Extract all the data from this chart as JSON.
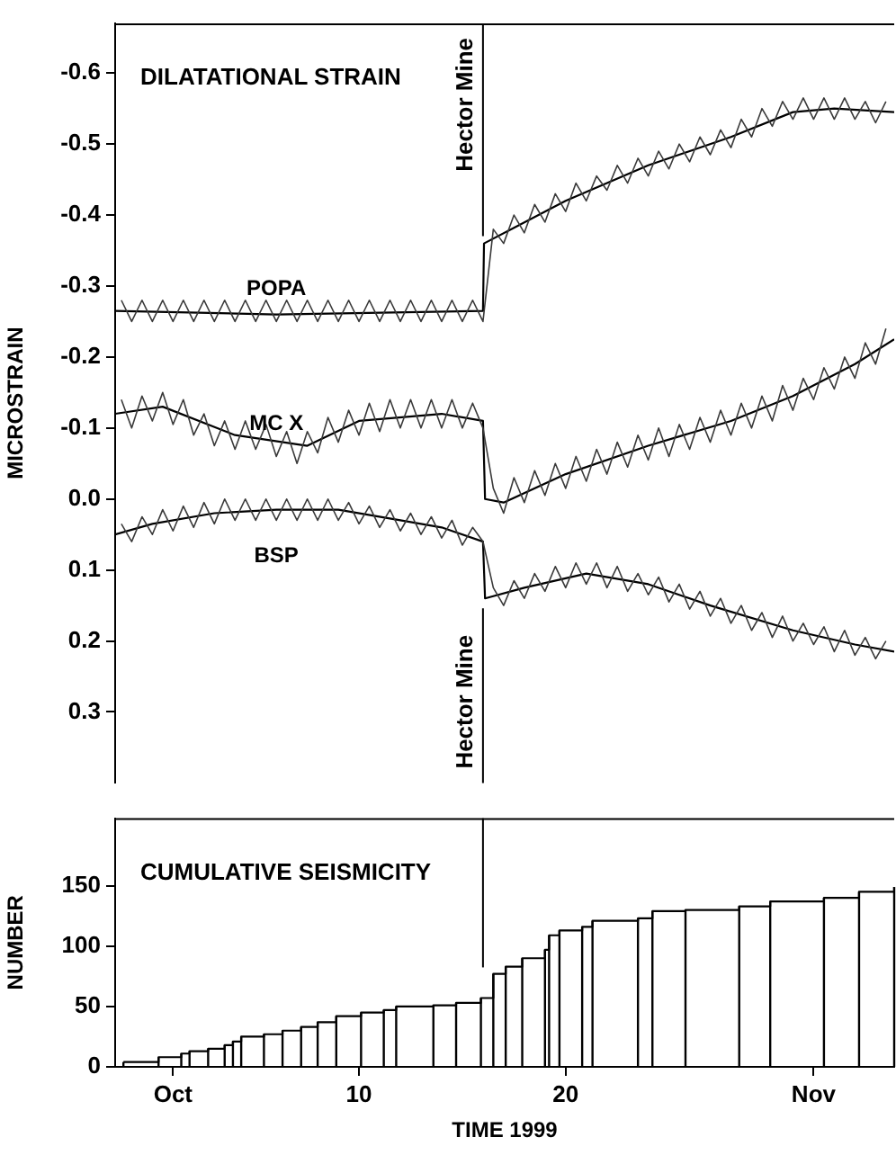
{
  "chart_data": [
    {
      "type": "line",
      "title": "DILATATIONAL STRAIN",
      "ylabel": "MICROSTRAIN",
      "x": [
        -1.5,
        -1,
        -0.5,
        0,
        0.5,
        1,
        1.5,
        2,
        2.5,
        3,
        3.5,
        4,
        4.5,
        5,
        5.5,
        6,
        6.5,
        7,
        7.5,
        8,
        8.5,
        9,
        9.5,
        10,
        10.5,
        11,
        11.5,
        12,
        12.5,
        13,
        13.5,
        14,
        14.5,
        15,
        15.5,
        16,
        16.5,
        17,
        17.5,
        18,
        18.5,
        19,
        19.5,
        20,
        20.5,
        21,
        21.5,
        22,
        22.5,
        23,
        23.5,
        24,
        24.5,
        25,
        25.5,
        26,
        26.5,
        27,
        27.5,
        28,
        28.5,
        29,
        29.5,
        30,
        30.5,
        31,
        31.5,
        32,
        32.5,
        33,
        33.5,
        34,
        34.5,
        35,
        35.5
      ],
      "xlim": [
        -1.8,
        35.9
      ],
      "ylim": [
        0.4,
        -0.67
      ],
      "yticks": [
        -0.6,
        -0.5,
        -0.4,
        -0.3,
        -0.2,
        -0.1,
        {
          "value": 0,
          "label": "0.0"
        },
        0.1,
        0.2,
        0.3
      ],
      "tick_labels": "y",
      "grid": false,
      "ref_lines": [
        {
          "axis": "x",
          "value": 16,
          "label": "Hector Mine"
        }
      ],
      "annotations": [
        {
          "text": "Hector Mine",
          "x": 16,
          "y": 0.38
        }
      ],
      "series": [
        {
          "name": "POPA",
          "color": "#3a3a3a",
          "values": [
            -0.28,
            -0.25,
            -0.28,
            -0.25,
            -0.28,
            -0.25,
            -0.28,
            -0.25,
            -0.28,
            -0.25,
            -0.28,
            -0.25,
            -0.28,
            -0.25,
            -0.28,
            -0.25,
            -0.28,
            -0.25,
            -0.28,
            -0.25,
            -0.28,
            -0.25,
            -0.28,
            -0.25,
            -0.28,
            -0.25,
            -0.28,
            -0.25,
            -0.28,
            -0.25,
            -0.28,
            -0.25,
            -0.28,
            -0.25,
            -0.28,
            -0.25,
            -0.38,
            -0.36,
            -0.4,
            -0.375,
            -0.415,
            -0.39,
            -0.43,
            -0.405,
            -0.445,
            -0.42,
            -0.455,
            -0.435,
            -0.47,
            -0.445,
            -0.48,
            -0.455,
            -0.49,
            -0.465,
            -0.5,
            -0.475,
            -0.51,
            -0.485,
            -0.52,
            -0.495,
            -0.535,
            -0.51,
            -0.55,
            -0.525,
            -0.56,
            -0.535,
            -0.565,
            -0.535,
            -0.565,
            -0.535,
            -0.565,
            -0.535,
            -0.56,
            -0.53,
            -0.56
          ]
        },
        {
          "color": "#000000",
          "x": [
            -1.8,
            6,
            16,
            16.05,
            20,
            24,
            28,
            31,
            33,
            35.9
          ],
          "values": [
            -0.265,
            -0.26,
            -0.265,
            -0.36,
            -0.42,
            -0.47,
            -0.51,
            -0.545,
            -0.55,
            -0.545
          ]
        },
        {
          "name": "MC X",
          "color": "#3a3a3a",
          "values": [
            -0.14,
            -0.1,
            -0.145,
            -0.11,
            -0.15,
            -0.105,
            -0.14,
            -0.09,
            -0.12,
            -0.075,
            -0.11,
            -0.07,
            -0.11,
            -0.07,
            -0.105,
            -0.06,
            -0.095,
            -0.05,
            -0.095,
            -0.065,
            -0.115,
            -0.08,
            -0.125,
            -0.09,
            -0.135,
            -0.095,
            -0.14,
            -0.1,
            -0.14,
            -0.1,
            -0.14,
            -0.1,
            -0.14,
            -0.1,
            -0.135,
            -0.1,
            -0.015,
            0.02,
            -0.03,
            0.005,
            -0.04,
            -0.005,
            -0.05,
            -0.015,
            -0.06,
            -0.025,
            -0.07,
            -0.035,
            -0.08,
            -0.045,
            -0.09,
            -0.055,
            -0.1,
            -0.06,
            -0.105,
            -0.07,
            -0.115,
            -0.08,
            -0.125,
            -0.09,
            -0.135,
            -0.1,
            -0.145,
            -0.11,
            -0.16,
            -0.125,
            -0.17,
            -0.14,
            -0.185,
            -0.155,
            -0.2,
            -0.17,
            -0.22,
            -0.19,
            -0.24
          ]
        },
        {
          "color": "#000000",
          "x": [
            -1.8,
            0.5,
            4,
            7.5,
            10,
            14,
            16,
            16.1,
            17,
            20,
            24,
            28,
            31,
            34,
            35.9
          ],
          "values": [
            -0.12,
            -0.13,
            -0.09,
            -0.075,
            -0.11,
            -0.12,
            -0.11,
            0.0,
            0.005,
            -0.035,
            -0.075,
            -0.11,
            -0.145,
            -0.19,
            -0.225
          ]
        },
        {
          "name": "BSP",
          "color": "#3a3a3a",
          "values": [
            0.035,
            0.06,
            0.025,
            0.05,
            0.015,
            0.045,
            0.01,
            0.04,
            0.005,
            0.035,
            0.0,
            0.03,
            0.0,
            0.03,
            0.0,
            0.03,
            0.0,
            0.03,
            0.0,
            0.03,
            0.0,
            0.03,
            0.005,
            0.035,
            0.01,
            0.04,
            0.015,
            0.045,
            0.02,
            0.05,
            0.025,
            0.055,
            0.03,
            0.065,
            0.04,
            0.06,
            0.125,
            0.15,
            0.115,
            0.14,
            0.105,
            0.13,
            0.095,
            0.125,
            0.09,
            0.12,
            0.09,
            0.125,
            0.095,
            0.13,
            0.105,
            0.135,
            0.11,
            0.145,
            0.12,
            0.155,
            0.13,
            0.165,
            0.14,
            0.175,
            0.15,
            0.185,
            0.16,
            0.195,
            0.165,
            0.2,
            0.175,
            0.205,
            0.18,
            0.215,
            0.185,
            0.22,
            0.195,
            0.225,
            0.2
          ]
        },
        {
          "color": "#000000",
          "x": [
            -1.8,
            0,
            3,
            6,
            9,
            12,
            14,
            16,
            16.1,
            18,
            21,
            24,
            27,
            31,
            34,
            35.9
          ],
          "values": [
            0.05,
            0.035,
            0.02,
            0.015,
            0.015,
            0.03,
            0.04,
            0.06,
            0.14,
            0.125,
            0.105,
            0.12,
            0.15,
            0.185,
            0.205,
            0.215
          ]
        }
      ]
    },
    {
      "type": "line",
      "title": "CUMULATIVE SEISMICITY",
      "xlabel": "TIME 1999",
      "ylabel": "NUMBER",
      "xlim": [
        -1.8,
        35.9
      ],
      "xticks": [
        {
          "value": 1,
          "label": "Oct"
        },
        10,
        20,
        {
          "value": 32,
          "label": "Nov"
        }
      ],
      "ylim": [
        0,
        206
      ],
      "yticks": [
        0,
        50,
        100,
        150
      ],
      "grid": false,
      "ref_lines": [
        {
          "axis": "x",
          "value": 16
        }
      ],
      "series": [
        {
          "color": "#000000",
          "x": [
            -1.4,
            0.3,
            0.3,
            1.4,
            1.4,
            1.8,
            1.8,
            2.7,
            2.7,
            3.5,
            3.5,
            3.9,
            3.9,
            4.3,
            4.3,
            5.4,
            5.4,
            6.3,
            6.3,
            7.2,
            7.2,
            8.0,
            8.0,
            8.9,
            8.9,
            10.1,
            10.1,
            11.2,
            11.2,
            11.8,
            11.8,
            13.6,
            13.6,
            14.7,
            14.7,
            15.9,
            15.9,
            16.5,
            16.5,
            17.1,
            17.1,
            17.9,
            17.9,
            19.0,
            19.0,
            19.2,
            19.2,
            19.7,
            19.7,
            20.8,
            20.8,
            21.3,
            21.3,
            23.5,
            23.5,
            24.2,
            24.2,
            25.8,
            25.8,
            28.4,
            28.4,
            29.9,
            29.9,
            32.5,
            32.5,
            34.2,
            34.2,
            35.9,
            35.9
          ],
          "values": [
            4,
            4,
            8,
            8,
            11,
            11,
            13,
            13,
            15,
            15,
            18,
            18,
            21,
            21,
            25,
            25,
            27,
            27,
            30,
            30,
            33,
            33,
            37,
            37,
            42,
            42,
            45,
            45,
            47,
            47,
            50,
            50,
            51,
            51,
            53,
            53,
            57,
            57,
            77,
            77,
            83,
            83,
            90,
            90,
            97,
            97,
            109,
            109,
            113,
            113,
            116,
            116,
            121,
            121,
            123,
            123,
            129,
            129,
            130,
            130,
            133,
            133,
            137,
            137,
            140,
            140,
            145,
            145,
            149
          ]
        },
        {
          "type": "bar",
          "color": "#000000",
          "x": [
            -1.4,
            0.3,
            1.4,
            1.8,
            2.7,
            3.5,
            3.9,
            4.3,
            5.4,
            6.3,
            7.2,
            8.0,
            8.9,
            10.1,
            11.2,
            11.8,
            13.6,
            14.7,
            15.9,
            16.5,
            17.1,
            17.9,
            19.0,
            19.2,
            19.7,
            20.8,
            21.3,
            23.5,
            24.2,
            25.8,
            28.4,
            29.9,
            32.5,
            34.2,
            35.9
          ],
          "values": [
            4,
            8,
            11,
            13,
            15,
            18,
            21,
            25,
            27,
            30,
            33,
            37,
            42,
            45,
            47,
            50,
            51,
            53,
            57,
            77,
            83,
            90,
            97,
            109,
            113,
            116,
            121,
            123,
            129,
            130,
            133,
            137,
            140,
            145,
            149
          ]
        }
      ]
    }
  ]
}
